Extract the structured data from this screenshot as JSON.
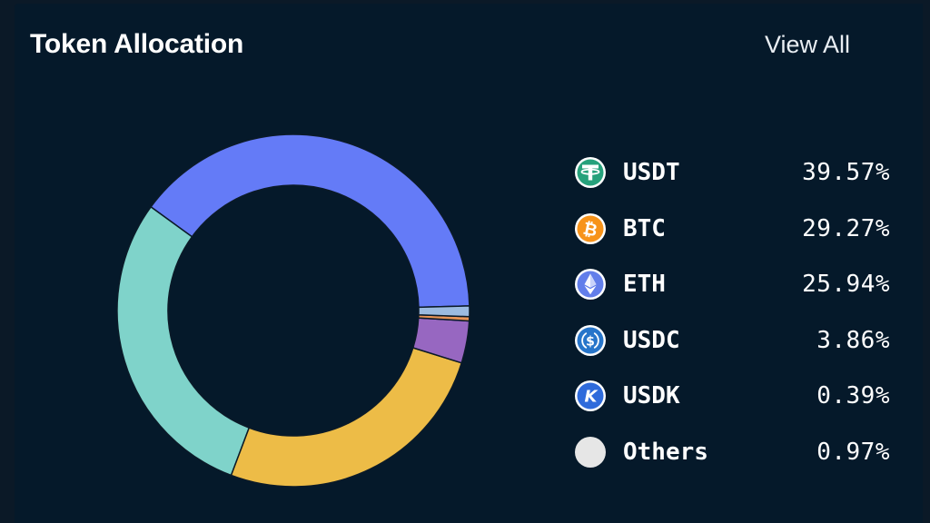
{
  "card": {
    "title": "Token Allocation",
    "view_all_label": "View All"
  },
  "colors": {
    "background": "#05192a",
    "usdt": "#647bf7",
    "btc": "#7fd3ca",
    "eth": "#edbc47",
    "usdc": "#9767c1",
    "usdk": "#e89455",
    "others": "#9bbbe0"
  },
  "chart_data": {
    "type": "pie",
    "variant": "donut",
    "title": "Token Allocation",
    "categories": [
      "USDT",
      "BTC",
      "ETH",
      "USDC",
      "USDK",
      "Others"
    ],
    "values": [
      39.57,
      29.27,
      25.94,
      3.86,
      0.39,
      0.97
    ],
    "unit": "%",
    "legend_position": "right",
    "legend": [
      {
        "name": "USDT",
        "percent": "39.57%",
        "icon": "tether-icon",
        "icon_color": "#26a17b"
      },
      {
        "name": "BTC",
        "percent": "29.27%",
        "icon": "bitcoin-icon",
        "icon_color": "#f7931a"
      },
      {
        "name": "ETH",
        "percent": "25.94%",
        "icon": "ethereum-icon",
        "icon_color": "#627eea"
      },
      {
        "name": "USDC",
        "percent": "3.86%",
        "icon": "usdc-icon",
        "icon_color": "#2775ca"
      },
      {
        "name": "USDK",
        "percent": "0.39%",
        "icon": "usdk-icon",
        "icon_color": "#2f6bdb"
      },
      {
        "name": "Others",
        "percent": "0.97%",
        "icon": "others-circle-icon",
        "icon_color": "#e6e6e6"
      }
    ]
  }
}
